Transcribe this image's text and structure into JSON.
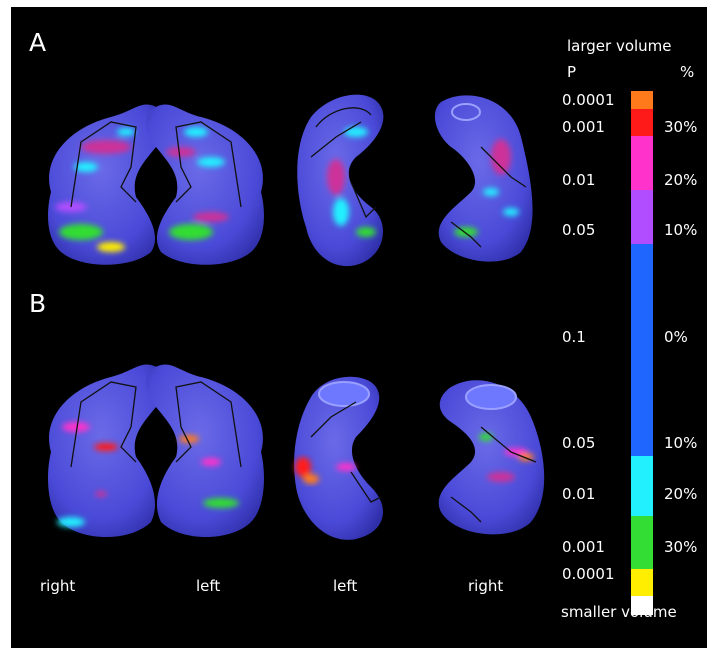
{
  "panel_labels": {
    "a": "A",
    "b": "B"
  },
  "view_labels": [
    "right",
    "left",
    "left",
    "right"
  ],
  "legend": {
    "top_caption": "larger volume",
    "bottom_caption": "smaller volume",
    "p_header": "P",
    "pct_header": "%",
    "rows": [
      {
        "p": "0.0001",
        "pct": ""
      },
      {
        "p": "0.001",
        "pct": "30%"
      },
      {
        "p": "0.01",
        "pct": "20%"
      },
      {
        "p": "0.05",
        "pct": "10%"
      },
      {
        "p": "0.1",
        "pct": "0%"
      },
      {
        "p": "0.05",
        "pct": "10%"
      },
      {
        "p": "0.01",
        "pct": "20%"
      },
      {
        "p": "0.001",
        "pct": "30%"
      },
      {
        "p": "0.0001",
        "pct": ""
      }
    ],
    "colors": [
      "#ff7a1a",
      "#ff1a1a",
      "#ff33cc",
      "#b24dff",
      "#1f66ff",
      "#1f66ff",
      "#22f0ff",
      "#33dd33",
      "#ffee00",
      "#ffffff"
    ]
  }
}
